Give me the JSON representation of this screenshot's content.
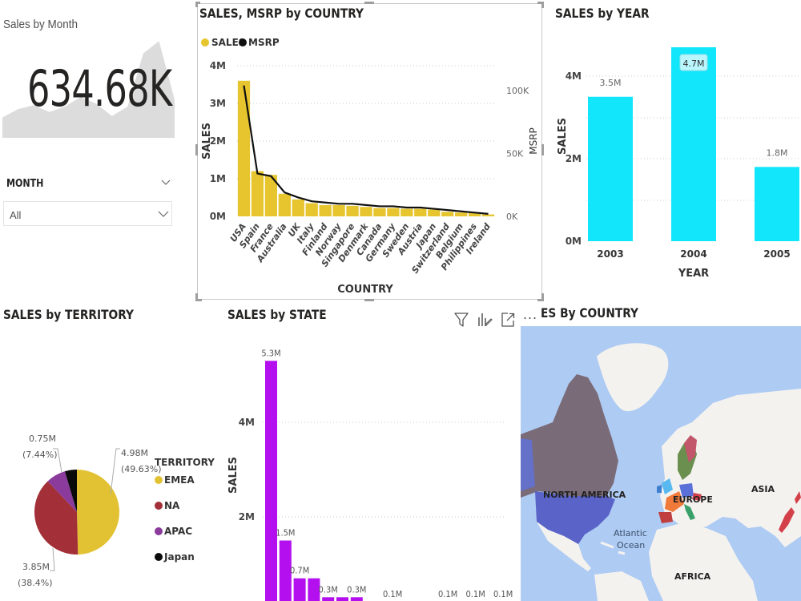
{
  "kpi": {
    "title": "Sales by Month",
    "value": "634.68K",
    "sparkline_monthly_sales_k": [
      150,
      210,
      240,
      190,
      230,
      300,
      250,
      160,
      230,
      620,
      710,
      280
    ]
  },
  "slicer": {
    "title": "MONTH",
    "selected": "All"
  },
  "toolbar": {
    "more_label": "..."
  },
  "country_chart": {
    "title": "SALES, MSRP by COUNTRY",
    "legend": [
      {
        "label": "SALES",
        "color": "#e6c52e"
      },
      {
        "label": "MSRP",
        "color": "#111111"
      }
    ],
    "y_left_ticks": [
      "4M",
      "3M",
      "2M",
      "1M",
      "0M"
    ],
    "y_right_ticks": [
      "100K",
      "50K",
      "0K"
    ],
    "y_left_label": "SALES",
    "y_right_label": "MSRP",
    "x_label": "COUNTRY"
  },
  "year_chart": {
    "title": "SALES by YEAR",
    "y_ticks": [
      "4M",
      "2M",
      "0M"
    ],
    "y_label": "SALES",
    "x_label": "YEAR",
    "bar_color": "#12e6fa"
  },
  "territory_chart": {
    "title": "SALES by TERRITORY",
    "legend_title": "TERRITORY"
  },
  "state_chart": {
    "title": "SALES by STATE",
    "y_ticks": [
      "4M",
      "2M"
    ],
    "y_label": "SALES",
    "bar_color": "#b40fef"
  },
  "map": {
    "title": "ES By COUNTRY",
    "labels": {
      "north_america": "NORTH AMERICA",
      "europe": "EUROPE",
      "asia": "ASIA",
      "africa": "AFRICA",
      "ocean_line1": "Atlantic",
      "ocean_line2": "Ocean"
    },
    "colors": {
      "water": "#aecbf3",
      "land": "#f4f2ef",
      "canada": "#7a6b78",
      "usa": "#5a63c8"
    }
  },
  "chart_data": [
    {
      "type": "bar",
      "title": "SALES, MSRP by COUNTRY",
      "categories": [
        "USA",
        "Spain",
        "France",
        "Australia",
        "UK",
        "Italy",
        "Finland",
        "Norway",
        "Singapore",
        "Denmark",
        "Canada",
        "Germany",
        "Sweden",
        "Austria",
        "Japan",
        "Switzerland",
        "Belgium",
        "Philippines",
        "Ireland"
      ],
      "series": [
        {
          "name": "SALES",
          "type": "bar",
          "axis": "left",
          "values": [
            3.6,
            1.2,
            1.1,
            0.6,
            0.45,
            0.35,
            0.3,
            0.3,
            0.28,
            0.25,
            0.22,
            0.22,
            0.2,
            0.2,
            0.18,
            0.12,
            0.1,
            0.09,
            0.05
          ]
        },
        {
          "name": "MSRP",
          "type": "line",
          "axis": "right",
          "values": [
            104,
            34,
            32,
            19,
            15,
            12,
            11,
            10,
            10,
            9,
            8,
            8,
            7,
            7,
            6,
            5,
            4,
            3,
            2
          ]
        }
      ],
      "xlabel": "COUNTRY",
      "ylabel": "SALES",
      "y2label": "MSRP",
      "ylim": [
        0,
        4
      ],
      "y2lim": [
        0,
        120
      ],
      "y_unit": "M",
      "y2_unit": "K",
      "legend": "top-left",
      "grid": true
    },
    {
      "type": "bar",
      "title": "SALES by YEAR",
      "categories": [
        "2003",
        "2004",
        "2005"
      ],
      "values": [
        3.5,
        4.7,
        1.8
      ],
      "data_labels": [
        "3.5M",
        "4.7M",
        "1.8M"
      ],
      "xlabel": "YEAR",
      "ylabel": "SALES",
      "ylim": [
        0,
        5
      ],
      "y_unit": "M",
      "grid": true
    },
    {
      "type": "pie",
      "title": "SALES by TERRITORY",
      "categories": [
        "EMEA",
        "NA",
        "APAC",
        "Japan"
      ],
      "values": [
        4.98,
        3.85,
        0.75,
        0.46
      ],
      "percent": [
        49.63,
        38.4,
        7.44,
        4.53
      ],
      "colors": [
        "#e2c232",
        "#a33038",
        "#8a3b9c",
        "#0a0a0a"
      ],
      "data_labels": [
        {
          "value": "4.98M",
          "pct": "(49.63%)"
        },
        {
          "value": "3.85M",
          "pct": "(38.4%)"
        },
        {
          "value": "0.75M",
          "pct": "(7.44%)"
        }
      ],
      "legend": "right"
    },
    {
      "type": "bar",
      "title": "SALES by STATE",
      "values": [
        5.3,
        1.5,
        0.7,
        0.7,
        0.3,
        0.3,
        0.3,
        0.1,
        0.1,
        0.1,
        0.1,
        0.1,
        0.1
      ],
      "data_labels": [
        "5.3M",
        "1.5M",
        "0.7M",
        "",
        "0.3M",
        "",
        "0.3M",
        "0.1M",
        "",
        "0.1M",
        "0.1M",
        "0.1M",
        "0.1M"
      ],
      "ylabel": "SALES",
      "ylim": [
        0,
        6
      ],
      "y_unit": "M",
      "grid": true
    }
  ]
}
